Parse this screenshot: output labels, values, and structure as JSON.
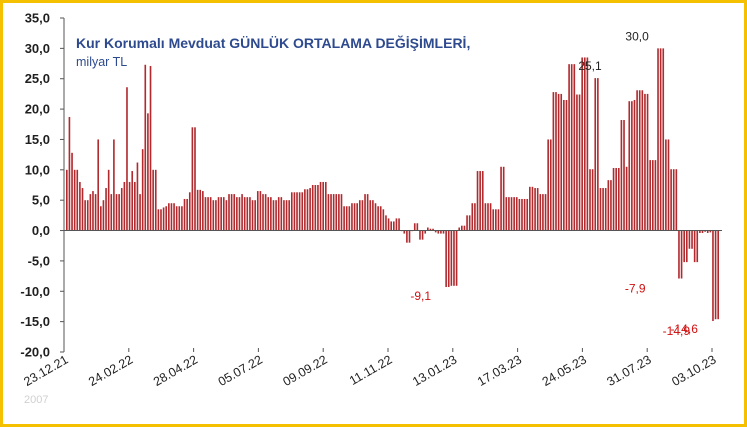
{
  "chart_data": {
    "type": "bar",
    "title": "Kur Korumalı Mevduat GÜNLÜK ORTALAMA DEĞİŞİMLERİ,",
    "subtitle": "milyar TL",
    "ylim": [
      -20,
      35
    ],
    "yticks": [
      "35,0",
      "30,0",
      "25,0",
      "20,0",
      "15,0",
      "10,0",
      "5,0",
      "0,0",
      "-5,0",
      "-10,0",
      "-15,0",
      "-20,0"
    ],
    "xlabels": [
      "23.12.21",
      "24.02.22",
      "28.04.22",
      "05.07.22",
      "09.09.22",
      "11.11.22",
      "13.01.23",
      "17.03.23",
      "24.05.23",
      "31.07.23",
      "03.10.23"
    ],
    "corner_label": "2007",
    "bar_color": "#b02a2e",
    "annotation_color_positive": "#1f1f1f",
    "annotation_color_negative": "#d01010",
    "annotations": [
      {
        "text": "25,1",
        "bar": 200,
        "value": 25.1
      },
      {
        "text": "30,0",
        "bar": 218,
        "value": 30.0
      },
      {
        "text": "-9,1",
        "bar": 140,
        "value": -9.1
      },
      {
        "text": "-7,9",
        "bar": 222,
        "value": -7.9
      },
      {
        "text": "-14,9",
        "bar": 239,
        "value": -14.9
      },
      {
        "text": "-14,6",
        "bar": 242,
        "value": -14.6
      }
    ],
    "values": [
      10,
      18.7,
      12.8,
      10,
      10,
      8,
      7,
      5,
      5,
      6,
      6.5,
      6,
      15,
      4,
      5,
      7,
      10,
      6,
      15,
      6,
      6,
      7,
      8,
      23.6,
      8,
      9.8,
      8,
      11.2,
      6,
      13.4,
      27.3,
      19.3,
      27.1,
      10,
      10,
      3.5,
      3.5,
      3.8,
      4,
      4.5,
      4.5,
      4.5,
      4,
      4,
      4,
      5.2,
      5.2,
      6.3,
      17,
      17,
      6.7,
      6.7,
      6.5,
      5.5,
      5.5,
      5.5,
      5,
      5,
      5.5,
      5.5,
      5.5,
      5,
      6,
      6,
      6,
      5.5,
      5.5,
      6,
      5.5,
      5.5,
      5.5,
      5,
      5,
      6.5,
      6.5,
      6,
      6,
      5.5,
      5.5,
      5,
      5,
      5.5,
      5.5,
      5,
      5,
      5,
      6.3,
      6.3,
      6.3,
      6.3,
      6.3,
      6.8,
      6.8,
      7,
      7.5,
      7.5,
      7.5,
      8,
      8,
      8,
      6,
      6,
      6,
      6,
      6,
      6,
      4,
      4,
      4,
      4.5,
      4.5,
      4.5,
      5,
      5,
      6,
      6,
      5,
      5,
      4.5,
      4,
      4,
      3.5,
      2.5,
      2,
      1.5,
      1.5,
      2,
      2,
      0,
      -0.5,
      -2,
      -2,
      0,
      1.2,
      1.2,
      -1.5,
      -1.5,
      -0.5,
      0.5,
      0.3,
      0.3,
      -0.3,
      -0.5,
      -0.5,
      -0.5,
      -9.3,
      -9.3,
      -9.1,
      -9.1,
      -9.1,
      0.5,
      0.8,
      0.8,
      2.5,
      2.5,
      4.5,
      4.5,
      9.8,
      9.8,
      9.8,
      4.5,
      4.5,
      4.5,
      3.5,
      3.5,
      3.5,
      10.5,
      10.5,
      5.5,
      5.5,
      5.5,
      5.5,
      5.5,
      5.2,
      5.2,
      5.2,
      5.2,
      7.2,
      7.2,
      7,
      7,
      6,
      6,
      6,
      15,
      15,
      22.8,
      22.8,
      22.5,
      22.5,
      21.5,
      21.5,
      27.4,
      27.4,
      27.4,
      22.4,
      22.4,
      28.5,
      28.5,
      28.5,
      10.1,
      10.1,
      25.1,
      25.1,
      7,
      7,
      7,
      8.3,
      8.3,
      10.3,
      10.3,
      10.3,
      18.2,
      18.2,
      10.5,
      21.3,
      21.3,
      21.5,
      23.1,
      23.1,
      23.1,
      22.5,
      22.5,
      11.6,
      11.6,
      11.6,
      30,
      30,
      30,
      15,
      15,
      10.1,
      10.1,
      10.1,
      -7.9,
      -7.9,
      -5.2,
      -5.2,
      -3,
      -3,
      -5.2,
      -5.2,
      -0.4,
      -0.4,
      -0.2,
      -0.4,
      -0.3,
      -14.9,
      -14.6,
      -14.6
    ]
  }
}
